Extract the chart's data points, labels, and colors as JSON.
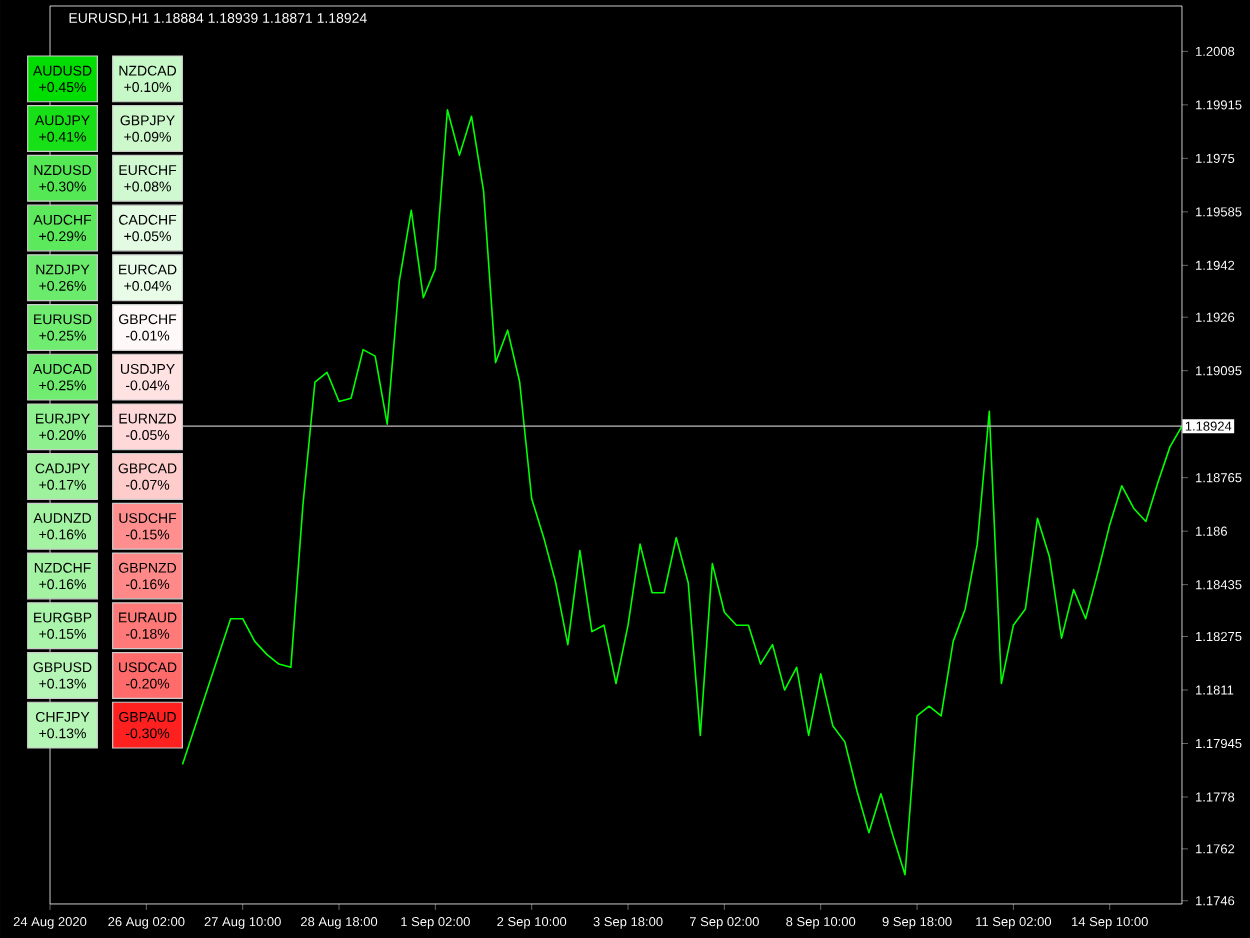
{
  "chart_data": [
    {
      "type": "line",
      "title": "EURUSD,H1  1.18884 1.18939 1.18871 1.18924",
      "categories": [
        "24 Aug 2020",
        null,
        null,
        null,
        null,
        null,
        null,
        null,
        "26 Aug 02:00",
        null,
        null,
        null,
        null,
        null,
        null,
        null,
        "27 Aug 10:00",
        null,
        null,
        null,
        null,
        null,
        null,
        null,
        "28 Aug 18:00",
        null,
        null,
        null,
        null,
        null,
        null,
        null,
        "1 Sep 02:00",
        null,
        null,
        null,
        null,
        null,
        null,
        null,
        "2 Sep 10:00",
        null,
        null,
        null,
        null,
        null,
        null,
        null,
        "3 Sep 18:00",
        null,
        null,
        null,
        null,
        null,
        null,
        null,
        "7 Sep 02:00",
        null,
        null,
        null,
        null,
        null,
        null,
        null,
        "8 Sep 10:00",
        null,
        null,
        null,
        null,
        null,
        null,
        null,
        "9 Sep 18:00",
        null,
        null,
        null,
        null,
        null,
        null,
        null,
        "11 Sep 02:00",
        null,
        null,
        null,
        null,
        null,
        null,
        null,
        "14 Sep 10:00",
        null,
        null,
        null,
        null,
        null,
        null
      ],
      "series": [
        {
          "color": "#00ff00",
          "values": [
            null,
            null,
            null,
            null,
            null,
            null,
            null,
            null,
            null,
            null,
            null,
            1.1788,
            null,
            null,
            null,
            1.1833,
            1.1833,
            1.1826,
            1.1822,
            1.1819,
            1.1818,
            1.1868,
            1.1906,
            1.1909,
            1.19,
            1.1901,
            1.1916,
            1.1914,
            1.1893,
            1.1937,
            1.1959,
            1.1932,
            1.1941,
            1.199,
            1.1976,
            1.1988,
            1.1965,
            1.1912,
            1.1922,
            1.1906,
            1.187,
            1.1858,
            1.1844,
            1.1825,
            1.1854,
            1.1829,
            1.1831,
            1.1813,
            1.1831,
            1.1856,
            1.1841,
            1.1841,
            1.1858,
            1.1844,
            1.1797,
            1.185,
            1.1835,
            1.1831,
            1.1831,
            1.1819,
            1.1825,
            1.1811,
            1.1818,
            1.1797,
            1.1816,
            1.18,
            1.1795,
            1.178,
            1.1767,
            1.1779,
            1.1766,
            1.1754,
            1.1803,
            1.1806,
            1.1803,
            1.1826,
            1.1836,
            1.1856,
            1.1897,
            1.1813,
            1.1831,
            1.1836,
            1.1864,
            1.1852,
            1.1827,
            1.1842,
            1.1833,
            1.1847,
            1.1862,
            1.1874,
            1.1867,
            1.1863,
            1.1875,
            1.1886,
            1.18924
          ]
        }
      ],
      "ylim": [
        1.1745,
        1.2022
      ],
      "yticks": [
        1.1746,
        1.1762,
        1.1778,
        1.17945,
        1.1811,
        1.18275,
        1.18435,
        1.186,
        1.18765,
        1.19095,
        1.1926,
        1.1942,
        1.19585,
        1.1975,
        1.19915,
        1.2008
      ],
      "ref_lines": [
        {
          "axis": "y",
          "value": 1.18924,
          "label": "1.18924",
          "color": "#c0c0c0"
        }
      ],
      "grid": false
    },
    {
      "type": "heatmap",
      "categories": [
        null,
        null
      ],
      "y_categories": [
        null,
        null,
        null,
        null,
        null,
        null,
        null,
        null,
        null,
        null,
        null,
        null,
        null,
        null
      ],
      "cells": [
        [
          0.45,
          0.1
        ],
        [
          0.41,
          0.09
        ],
        [
          0.3,
          0.08
        ],
        [
          0.29,
          0.05
        ],
        [
          0.26,
          0.04
        ],
        [
          0.25,
          -0.01
        ],
        [
          0.25,
          -0.04
        ],
        [
          0.2,
          -0.05
        ],
        [
          0.17,
          -0.07
        ],
        [
          0.16,
          -0.15
        ],
        [
          0.16,
          -0.16
        ],
        [
          0.15,
          -0.18
        ],
        [
          0.13,
          -0.2
        ],
        [
          0.13,
          -0.3
        ]
      ],
      "cell_labels": [
        [
          "AUDUSD +0.45%",
          "NZDCAD +0.10%"
        ],
        [
          "AUDJPY +0.41%",
          "GBPJPY +0.09%"
        ],
        [
          "NZDUSD +0.30%",
          "EURCHF +0.08%"
        ],
        [
          "AUDCHF +0.29%",
          "CADCHF +0.05%"
        ],
        [
          "NZDJPY +0.26%",
          "EURCAD +0.04%"
        ],
        [
          "EURUSD +0.25%",
          "GBPCHF -0.01%"
        ],
        [
          "AUDCAD +0.25%",
          "USDJPY -0.04%"
        ],
        [
          "EURJPY +0.20%",
          "EURNZD -0.05%"
        ],
        [
          "CADJPY +0.17%",
          "GBPCAD -0.07%"
        ],
        [
          "AUDNZD +0.16%",
          "USDCHF -0.15%"
        ],
        [
          "NZDCHF +0.16%",
          "GBPNZD -0.16%"
        ],
        [
          "EURGBP +0.15%",
          "EURAUD -0.18%"
        ],
        [
          "GBPUSD +0.13%",
          "USDCAD -0.20%"
        ],
        [
          "CHFJPY +0.13%",
          "GBPAUD -0.30%"
        ]
      ]
    }
  ]
}
